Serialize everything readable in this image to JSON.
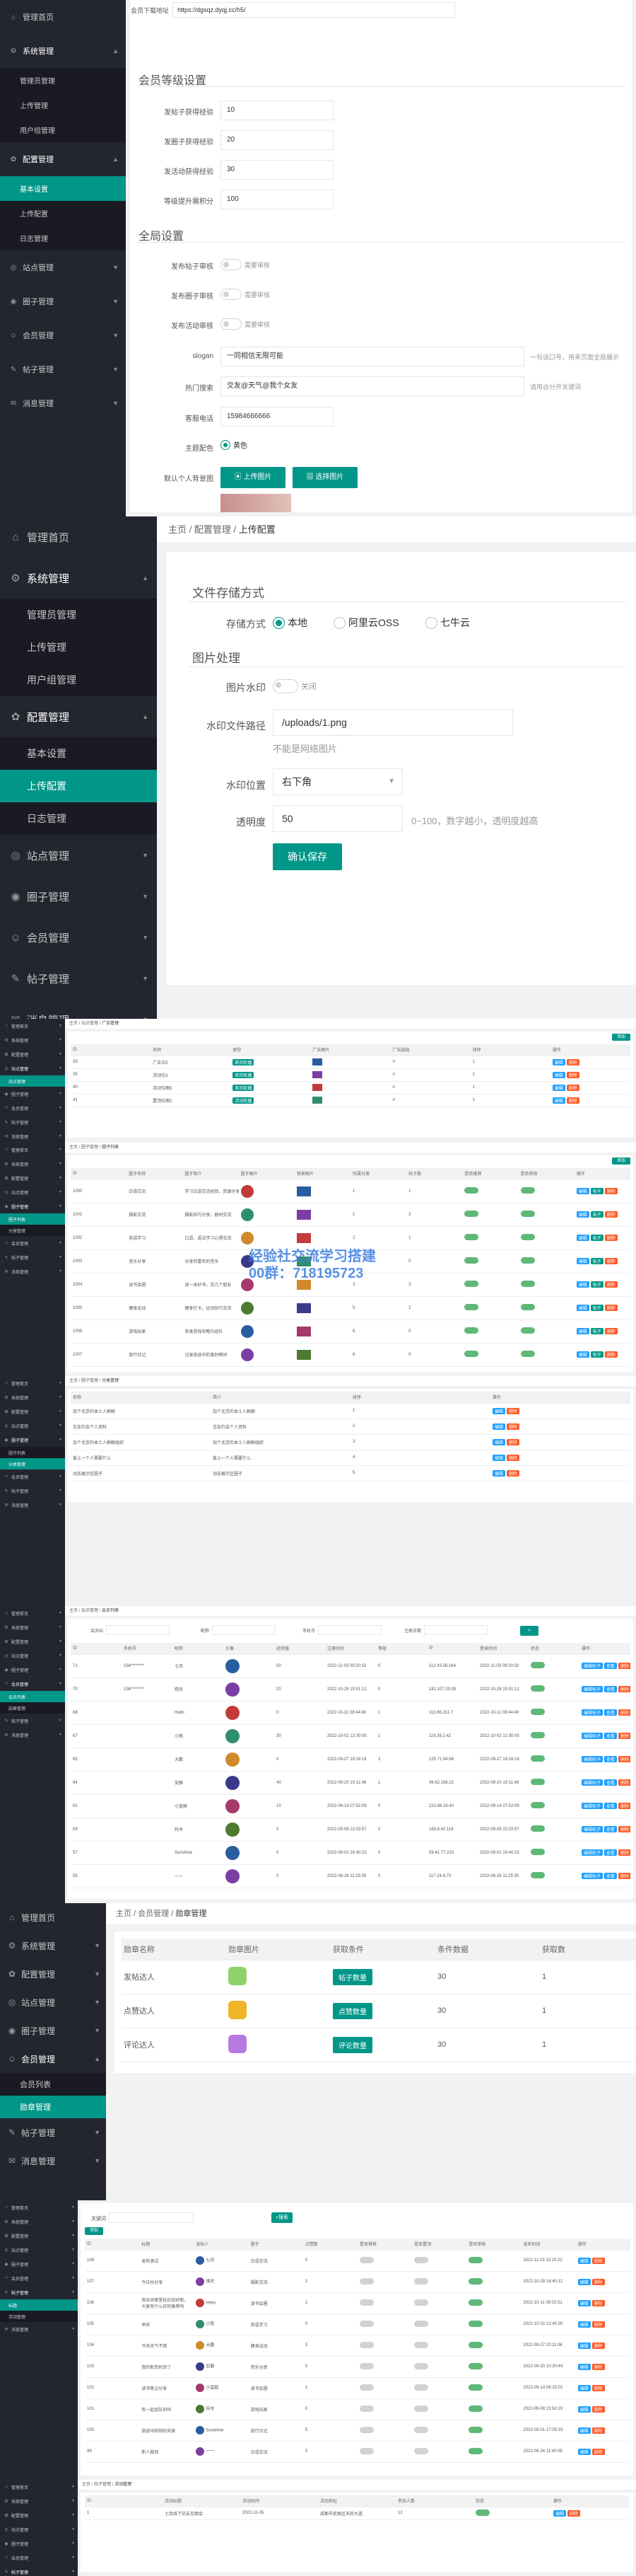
{
  "nav": {
    "home": "管理首页",
    "system": "系统管理",
    "system_items": [
      "管理员管理",
      "上传管理",
      "用户组管理"
    ],
    "config": "配置管理",
    "config_items": [
      "基本设置",
      "上传配置",
      "日志管理"
    ],
    "site": "站点管理",
    "circle": "圈子管理",
    "member": "会员管理",
    "post": "帖子管理",
    "message": "消息管理"
  },
  "s1": {
    "download_label": "会员下载地址",
    "download_value": "https://dgsqz.dyqj.cc/h5/",
    "level_title": "会员等级设置",
    "levels": [
      {
        "label": "发帖子获得经验",
        "value": "10"
      },
      {
        "label": "发圈子获得经验",
        "value": "20"
      },
      {
        "label": "发活动获得经验",
        "value": "30"
      },
      {
        "label": "等级提升需积分",
        "value": "100"
      }
    ],
    "global_title": "全局设置",
    "audits": [
      {
        "label": "发布帖子审核",
        "state": "需要审核"
      },
      {
        "label": "发布圈子审核",
        "state": "需要审核"
      },
      {
        "label": "发布活动审核",
        "state": "需要审核"
      }
    ],
    "slogan_label": "slogan",
    "slogan_value": "一同相信无限可能",
    "slogan_tip": "一句话口号，用来页面全局展示",
    "hot_label": "热门搜索",
    "hot_value": "交友@天气@我个女友",
    "hot_tip": "请用@分开关键词",
    "phone_label": "客服电话",
    "phone_value": "15984666666",
    "theme_label": "主题配色",
    "theme_value": "黄色",
    "bg_label": "默认个人背景图",
    "upload_btn": "上传图片",
    "choose_btn": "选择图片"
  },
  "s2": {
    "crumb": [
      "主页",
      "配置管理",
      "上传配置"
    ],
    "storage_title": "文件存储方式",
    "storage_label": "存储方式",
    "storage_options": [
      "本地",
      "阿里云OSS",
      "七牛云"
    ],
    "image_title": "图片处理",
    "wm_label": "图片水印",
    "wm_state": "关闭",
    "path_label": "水印文件路径",
    "path_value": "/uploads/1.png",
    "path_tip": "不能是网络图片",
    "pos_label": "水印位置",
    "pos_value": "右下角",
    "alpha_label": "透明度",
    "alpha_value": "50",
    "alpha_tip": "0~100，数字越小，透明度越高",
    "save_btn": "确认保存"
  },
  "s3": {
    "crumb": [
      "主页",
      "站点管理",
      "广告管理"
    ],
    "add_btn": "添加",
    "headers": [
      "ID",
      "名称",
      "类型",
      "广告图片",
      "广告链接",
      "排序",
      "操作"
    ],
    "rows": [
      {
        "id": "33",
        "name": "广告位5",
        "type": "首页轮播",
        "link": "#",
        "sort": "1"
      },
      {
        "id": "35",
        "name": "活动位3",
        "type": "首页轮播",
        "link": "#",
        "sort": "1"
      },
      {
        "id": "40",
        "name": "活动位图5",
        "type": "首页轮播",
        "link": "#",
        "sort": "1"
      },
      {
        "id": "41",
        "name": "置顶位图2",
        "type": "活动轮播",
        "link": "#",
        "sort": "1"
      }
    ],
    "ops": [
      "编辑",
      "删除"
    ]
  },
  "s4": {
    "crumb": [
      "主页",
      "圈子管理",
      "圈子列表"
    ],
    "add_btn": "添加",
    "headers": [
      "ID",
      "圈子名称",
      "圈子简介",
      "圈子图片",
      "背景图片",
      "所属分类",
      "帖子数",
      "是否推荐",
      "是否审核",
      "操作"
    ],
    "rows": [
      {
        "id": "1000",
        "name": "日语交流",
        "desc": "学习日语交流经验，资源分享",
        "cat": "1",
        "num": "1"
      },
      {
        "id": "1001",
        "name": "摄影交流",
        "desc": "摄影技巧分享，器材交流",
        "cat": "1",
        "num": "3"
      },
      {
        "id": "1002",
        "name": "英语学习",
        "desc": "口语、语法学习心得交流",
        "cat": "2",
        "num": "1"
      },
      {
        "id": "1003",
        "name": "音乐分享",
        "desc": "分享你喜欢的音乐",
        "cat": "4",
        "num": "0"
      },
      {
        "id": "1004",
        "name": "读书会圈",
        "desc": "读一本好书，交几个朋友",
        "cat": "3",
        "num": "3"
      },
      {
        "id": "1005",
        "name": "健身运动",
        "desc": "健身打卡，运动技巧交流",
        "cat": "5",
        "num": "2"
      },
      {
        "id": "1006",
        "name": "游戏玩家",
        "desc": "各类游戏攻略与组队",
        "cat": "6",
        "num": "0"
      },
      {
        "id": "1007",
        "name": "旅行日记",
        "desc": "记录旅途中的美好瞬间",
        "cat": "6",
        "num": "0"
      }
    ],
    "ops": [
      "编辑",
      "帖子",
      "删除"
    ],
    "watermark_1": "经验社交流学习搭建",
    "watermark_2": "00群：718195723"
  },
  "s5": {
    "crumb": [
      "主页",
      "圈子管理",
      "分类管理"
    ],
    "headers": [
      "名称",
      "简介",
      "排序",
      "操作"
    ],
    "rows": [
      {
        "name": "加个北京的本土人群聊",
        "desc": "加个北京的本土人群聊",
        "sort": "1"
      },
      {
        "name": "交友约会个人资料",
        "desc": "交友约会个人资料",
        "sort": "2"
      },
      {
        "name": "加个北京的本土人群聊组织",
        "desc": "加个北京的本土人群聊组织",
        "sort": "3"
      },
      {
        "name": "爱上一个人需要什么",
        "desc": "爱上一个人需要什么",
        "sort": "4"
      },
      {
        "name": "动态展示区圈子",
        "desc": "动态展示区圈子",
        "sort": "5"
      }
    ],
    "ops": [
      "编辑",
      "删除"
    ]
  },
  "s6": {
    "crumb": [
      "主页",
      "会员管理",
      "会员列表"
    ],
    "filters": [
      "会员ID",
      "昵称",
      "手机号",
      "注册日期"
    ],
    "headers": [
      "ID",
      "手机号",
      "昵称",
      "头像",
      "经验值",
      "注册时间",
      "等级",
      "IP",
      "登录时间",
      "状态",
      "操作"
    ],
    "rows": [
      {
        "id": "71",
        "phone": "158********",
        "nick": "七月",
        "exp": "50",
        "time": "2022-11-03 09:20:32",
        "lv": "0",
        "ip": "112.43.58.164"
      },
      {
        "id": "70",
        "phone": "158********",
        "nick": "晴天",
        "exp": "20",
        "time": "2022-10-28 15:01:12",
        "lv": "0",
        "ip": "182.107.20.93"
      },
      {
        "id": "68",
        "phone": "",
        "nick": "Hello",
        "exp": "0",
        "time": "2022-10-11 08:44:40",
        "lv": "1",
        "ip": "113.86.211.7"
      },
      {
        "id": "67",
        "phone": "",
        "nick": "小熊",
        "exp": "30",
        "time": "2022-10-02 12:30:05",
        "lv": "1",
        "ip": "119.39.2.42"
      },
      {
        "id": "65",
        "phone": "",
        "nick": "大鹏",
        "exp": "0",
        "time": "2022-09-27 19:18:16",
        "lv": "2",
        "ip": "125.71.94.66"
      },
      {
        "id": "64",
        "phone": "",
        "nick": "安静",
        "exp": "40",
        "time": "2022-09-20 10:11:48",
        "lv": "1",
        "ip": "36.62.198.22"
      },
      {
        "id": "61",
        "phone": "",
        "nick": "小蓝鲸",
        "exp": "10",
        "time": "2022-09-14 07:52:09",
        "lv": "0",
        "ip": "222.88.16.40"
      },
      {
        "id": "59",
        "phone": "",
        "nick": "阿木",
        "exp": "0",
        "time": "2022-09-08 22:03:57",
        "lv": "0",
        "ip": "183.6.42.118"
      },
      {
        "id": "57",
        "phone": "",
        "nick": "Sunshine",
        "exp": "0",
        "time": "2022-09-01 16:40:23",
        "lv": "0",
        "ip": "59.41.77.210"
      },
      {
        "id": "55",
        "phone": "",
        "nick": "一一",
        "exp": "0",
        "time": "2022-08-26 11:25:30",
        "lv": "0",
        "ip": "117.24.8.73"
      }
    ],
    "ops": [
      "编辑帖子",
      "查看",
      "删除"
    ]
  },
  "s7": {
    "crumb": [
      "主页",
      "会员管理",
      "勋章管理"
    ],
    "nav_active": "勋章管理",
    "nav_member_list": "会员列表",
    "headers": [
      "勋章名称",
      "勋章图片",
      "获取条件",
      "条件数据",
      "获取数"
    ],
    "rows": [
      {
        "name": "发帖达人",
        "cond": "帖子数量",
        "data": "30",
        "cnt": "1"
      },
      {
        "name": "点赞达人",
        "cond": "点赞数量",
        "data": "30",
        "cnt": "1"
      },
      {
        "name": "评论达人",
        "cond": "评论数量",
        "data": "30",
        "cnt": "1"
      }
    ]
  },
  "s8": {
    "search_label": "关键词",
    "search_btn": "搜索",
    "add_btn": "添加",
    "headers": [
      "ID",
      "标题",
      "发帖人",
      "圈子",
      "点赞数",
      "是否推荐",
      "是否置顶",
      "是否审核",
      "发布时间",
      "操作"
    ],
    "rows": [
      {
        "id": "108",
        "title": "发布测试",
        "user": "七月",
        "circle": "日语交流",
        "likes": "0",
        "time": "2022-11-03 10:15:22"
      },
      {
        "id": "107",
        "title": "今日份分享",
        "user": "晴天",
        "circle": "摄影交流",
        "likes": "2",
        "time": "2022-10-28 18:40:12"
      },
      {
        "id": "106",
        "title": "周末去哪里玩比较好呢，大家有什么好的推荐吗",
        "user": "Hello",
        "circle": "读书会圈",
        "likes": "1",
        "time": "2022-10-11 09:02:51"
      },
      {
        "id": "105",
        "title": "早安",
        "user": "小熊",
        "circle": "英语学习",
        "likes": "0",
        "time": "2022-10-02 12:45:30"
      },
      {
        "id": "104",
        "title": "今天天气不错",
        "user": "大鹏",
        "circle": "健身运动",
        "likes": "3",
        "time": "2022-09-27 20:11:06"
      },
      {
        "id": "103",
        "title": "我的新耳机到了",
        "user": "安静",
        "circle": "音乐分享",
        "likes": "0",
        "time": "2022-09-20 10:30:44"
      },
      {
        "id": "102",
        "title": "读书笔记分享",
        "user": "小蓝鲸",
        "circle": "读书会圈",
        "likes": "1",
        "time": "2022-09-14 08:15:02"
      },
      {
        "id": "101",
        "title": "有一起组队的吗",
        "user": "阿木",
        "circle": "游戏玩家",
        "likes": "0",
        "time": "2022-09-08 22:50:19"
      },
      {
        "id": "100",
        "title": "旅途中拍到的风景",
        "user": "Sunshine",
        "circle": "旅行日记",
        "likes": "5",
        "time": "2022-09-01 17:05:33"
      },
      {
        "id": "99",
        "title": "新人报到",
        "user": "一一",
        "circle": "日语交流",
        "likes": "0",
        "time": "2022-08-26 11:40:08"
      }
    ],
    "ops": [
      "编辑",
      "删除"
    ]
  },
  "s9": {
    "crumb": [
      "主页",
      "帖子管理",
      "活动管理"
    ],
    "headers": [
      "ID",
      "活动标题",
      "活动时间",
      "活动地址",
      "参加人数",
      "状态",
      "操作"
    ],
    "rows": [
      {
        "id": "1",
        "title": "七月线下交友见面会",
        "time": "2022-11-05",
        "addr": "成都市武侯区天府大道",
        "num": "12",
        "state": "进行中"
      }
    ]
  }
}
